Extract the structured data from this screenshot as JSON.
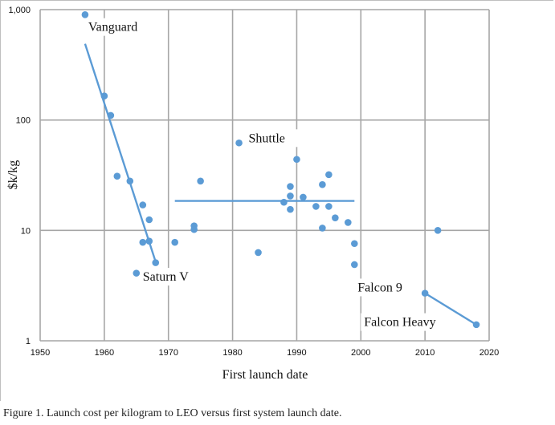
{
  "caption": "Figure 1. Launch cost per kilogram to LEO versus first system launch date.",
  "chart_data": {
    "type": "scatter",
    "xlabel": "First launch date",
    "ylabel": "$k/kg",
    "xlim": [
      1950,
      2020
    ],
    "ylim": [
      1,
      1000
    ],
    "yscale": "log",
    "grid": true,
    "x_ticks": [
      "1950",
      "1960",
      "1970",
      "1980",
      "1990",
      "2000",
      "2010",
      "2020"
    ],
    "y_ticks": [
      "1",
      "10",
      "100",
      "1,000"
    ],
    "colors": {
      "series": "#5b9bd5",
      "grid": "#a6a6a6"
    },
    "points": [
      {
        "x": 1957,
        "y": 900
      },
      {
        "x": 1960,
        "y": 165
      },
      {
        "x": 1961,
        "y": 110
      },
      {
        "x": 1962,
        "y": 31
      },
      {
        "x": 1964,
        "y": 28
      },
      {
        "x": 1965,
        "y": 4.1
      },
      {
        "x": 1966,
        "y": 17
      },
      {
        "x": 1966,
        "y": 7.8
      },
      {
        "x": 1967,
        "y": 12.5
      },
      {
        "x": 1967,
        "y": 8.0
      },
      {
        "x": 1968,
        "y": 5.1
      },
      {
        "x": 1971,
        "y": 7.8
      },
      {
        "x": 1974,
        "y": 11
      },
      {
        "x": 1974,
        "y": 10.2
      },
      {
        "x": 1975,
        "y": 28
      },
      {
        "x": 1981,
        "y": 62
      },
      {
        "x": 1984,
        "y": 6.3
      },
      {
        "x": 1988,
        "y": 18
      },
      {
        "x": 1989,
        "y": 25
      },
      {
        "x": 1989,
        "y": 20.5
      },
      {
        "x": 1989,
        "y": 15.5
      },
      {
        "x": 1990,
        "y": 44
      },
      {
        "x": 1991,
        "y": 20
      },
      {
        "x": 1993,
        "y": 16.5
      },
      {
        "x": 1994,
        "y": 26
      },
      {
        "x": 1994,
        "y": 10.5
      },
      {
        "x": 1995,
        "y": 32
      },
      {
        "x": 1995,
        "y": 16.5
      },
      {
        "x": 1996,
        "y": 13
      },
      {
        "x": 1998,
        "y": 11.8
      },
      {
        "x": 1999,
        "y": 7.6
      },
      {
        "x": 1999,
        "y": 4.9
      },
      {
        "x": 2010,
        "y": 2.7
      },
      {
        "x": 2012,
        "y": 10
      },
      {
        "x": 2018,
        "y": 1.4
      }
    ],
    "trend_lines": [
      {
        "x": [
          1957,
          1968
        ],
        "y": [
          490,
          5.2
        ]
      },
      {
        "x": [
          1971,
          1999
        ],
        "y": [
          18.5,
          18.5
        ]
      },
      {
        "x": [
          2010,
          2018
        ],
        "y": [
          2.7,
          1.4
        ]
      }
    ],
    "annotations": [
      {
        "text": "Vanguard",
        "x": 1957.5,
        "y": 640
      },
      {
        "text": "Shuttle",
        "x": 1982.5,
        "y": 63
      },
      {
        "text": "Saturn V",
        "x": 1966,
        "y": 3.5
      },
      {
        "text": "Falcon 9",
        "x": 1999.5,
        "y": 2.8
      },
      {
        "text": "Falcon Heavy",
        "x": 2000.5,
        "y": 1.36
      }
    ]
  }
}
